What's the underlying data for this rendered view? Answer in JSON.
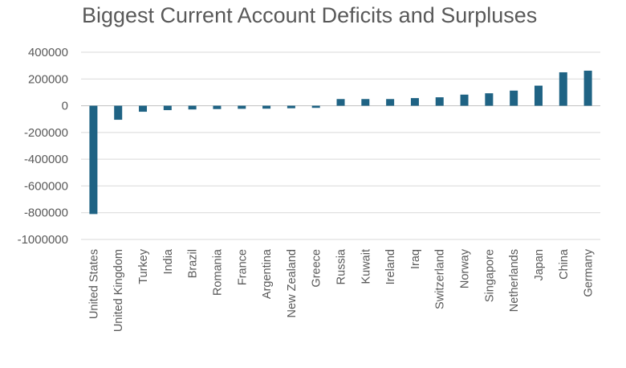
{
  "chart_data": {
    "type": "bar",
    "title": "Biggest Current Account Deficits and Surpluses",
    "xlabel": "",
    "ylabel": "",
    "ylim": [
      -1000000,
      400000
    ],
    "yticks": [
      400000,
      200000,
      0,
      -200000,
      -400000,
      -600000,
      -800000,
      -1000000
    ],
    "ytick_labels": [
      "400000",
      "200000",
      "0",
      "-200000",
      "-400000",
      "-600000",
      "-800000",
      "-1000000"
    ],
    "grid": true,
    "bar_color": "#1f6384",
    "categories": [
      "United States",
      "United Kingdom",
      "Turkey",
      "India",
      "Brazil",
      "Romania",
      "France",
      "Argentina",
      "New Zealand",
      "Greece",
      "Russia",
      "Kuwait",
      "Ireland",
      "Iraq",
      "Switzerland",
      "Norway",
      "Singapore",
      "Netherlands",
      "Japan",
      "China",
      "Germany"
    ],
    "values": [
      -810000,
      -105000,
      -45000,
      -33000,
      -28000,
      -25000,
      -23000,
      -22000,
      -19000,
      -16000,
      50000,
      50000,
      50000,
      57000,
      63000,
      83000,
      93000,
      113000,
      150000,
      250000,
      262000
    ]
  }
}
